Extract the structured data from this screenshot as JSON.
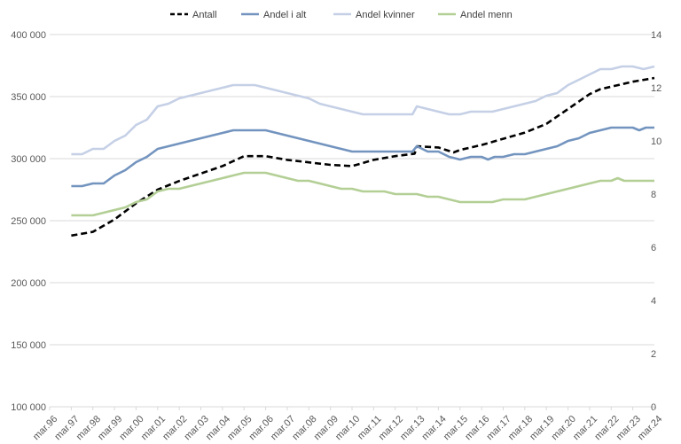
{
  "chart_data": {
    "type": "line",
    "title": "",
    "legend_position": "top",
    "grid": "horizontal",
    "x_tick_labels": [
      "mar.96",
      "mar.97",
      "mar.98",
      "mar.99",
      "mar.00",
      "mar.01",
      "mar.02",
      "mar.03",
      "mar.04",
      "mar.05",
      "mar.06",
      "mar.07",
      "mar.08",
      "mar.09",
      "mar.10",
      "mar.11",
      "mar.12",
      "mar.13",
      "mar.14",
      "mar.15",
      "mar.16",
      "mar.17",
      "mar.18",
      "mar.19",
      "mar.20",
      "mar.21",
      "mar.22",
      "mar.23",
      "mar.24"
    ],
    "y_left": {
      "min": 100000,
      "max": 400000,
      "step": 50000,
      "tick_labels": [
        "100 000",
        "150 000",
        "200 000",
        "250 000",
        "300 000",
        "350 000",
        "400 000"
      ]
    },
    "y_right": {
      "min": 0,
      "max": 14,
      "step": 2,
      "tick_labels": [
        "0",
        "2",
        "4",
        "6",
        "8",
        "10",
        "12",
        "14"
      ]
    },
    "series": [
      {
        "name": "Antall",
        "axis": "left",
        "color": "#000000",
        "dash": true,
        "points": [
          [
            1997,
            238000
          ],
          [
            1998,
            241000
          ],
          [
            1999,
            251000
          ],
          [
            2000,
            264000
          ],
          [
            2001,
            275000
          ],
          [
            2002,
            282000
          ],
          [
            2003,
            288000
          ],
          [
            2004,
            294000
          ],
          [
            2005,
            302000
          ],
          [
            2006,
            302000
          ],
          [
            2007,
            299000
          ],
          [
            2008,
            297000
          ],
          [
            2009,
            295000
          ],
          [
            2010,
            294000
          ],
          [
            2011,
            299000
          ],
          [
            2012,
            302000
          ],
          [
            2012.9,
            304000
          ],
          [
            2013,
            310000
          ],
          [
            2014,
            309000
          ],
          [
            2014.7,
            305000
          ],
          [
            2015,
            307000
          ],
          [
            2016,
            311000
          ],
          [
            2017,
            316000
          ],
          [
            2018,
            321000
          ],
          [
            2019,
            328000
          ],
          [
            2020,
            340000
          ],
          [
            2021,
            352000
          ],
          [
            2021.5,
            356000
          ],
          [
            2022,
            358000
          ],
          [
            2023,
            362000
          ],
          [
            2024,
            365000
          ]
        ]
      },
      {
        "name": "Andel i alt",
        "axis": "right",
        "color": "#7394BF",
        "dash": false,
        "points": [
          [
            1997,
            8.3
          ],
          [
            1997.5,
            8.3
          ],
          [
            1998,
            8.4
          ],
          [
            1998.5,
            8.4
          ],
          [
            1999,
            8.7
          ],
          [
            1999.5,
            8.9
          ],
          [
            2000,
            9.2
          ],
          [
            2000.5,
            9.4
          ],
          [
            2001,
            9.7
          ],
          [
            2001.5,
            9.8
          ],
          [
            2002,
            9.9
          ],
          [
            2002.5,
            10.0
          ],
          [
            2003,
            10.1
          ],
          [
            2003.5,
            10.2
          ],
          [
            2004,
            10.3
          ],
          [
            2004.5,
            10.4
          ],
          [
            2005,
            10.4
          ],
          [
            2005.5,
            10.4
          ],
          [
            2006,
            10.4
          ],
          [
            2006.5,
            10.3
          ],
          [
            2007,
            10.2
          ],
          [
            2007.5,
            10.1
          ],
          [
            2008,
            10.0
          ],
          [
            2008.5,
            9.9
          ],
          [
            2009,
            9.8
          ],
          [
            2009.5,
            9.7
          ],
          [
            2010,
            9.6
          ],
          [
            2010.5,
            9.6
          ],
          [
            2011,
            9.6
          ],
          [
            2011.5,
            9.6
          ],
          [
            2012,
            9.6
          ],
          [
            2012.8,
            9.6
          ],
          [
            2013,
            9.8
          ],
          [
            2013.5,
            9.6
          ],
          [
            2014,
            9.6
          ],
          [
            2014.5,
            9.4
          ],
          [
            2015,
            9.3
          ],
          [
            2015.5,
            9.4
          ],
          [
            2016,
            9.4
          ],
          [
            2016.3,
            9.3
          ],
          [
            2016.6,
            9.4
          ],
          [
            2017,
            9.4
          ],
          [
            2017.5,
            9.5
          ],
          [
            2018,
            9.5
          ],
          [
            2018.5,
            9.6
          ],
          [
            2019,
            9.7
          ],
          [
            2019.5,
            9.8
          ],
          [
            2020,
            10.0
          ],
          [
            2020.5,
            10.1
          ],
          [
            2021,
            10.3
          ],
          [
            2021.5,
            10.4
          ],
          [
            2022,
            10.5
          ],
          [
            2022.5,
            10.5
          ],
          [
            2023,
            10.5
          ],
          [
            2023.3,
            10.4
          ],
          [
            2023.6,
            10.5
          ],
          [
            2024,
            10.5
          ]
        ]
      },
      {
        "name": "Andel kvinner",
        "axis": "right",
        "color": "#C5D0E6",
        "dash": false,
        "points": [
          [
            1997,
            9.5
          ],
          [
            1997.5,
            9.5
          ],
          [
            1998,
            9.7
          ],
          [
            1998.5,
            9.7
          ],
          [
            1999,
            10.0
          ],
          [
            1999.5,
            10.2
          ],
          [
            2000,
            10.6
          ],
          [
            2000.5,
            10.8
          ],
          [
            2001,
            11.3
          ],
          [
            2001.5,
            11.4
          ],
          [
            2002,
            11.6
          ],
          [
            2002.5,
            11.7
          ],
          [
            2003,
            11.8
          ],
          [
            2003.5,
            11.9
          ],
          [
            2004,
            12.0
          ],
          [
            2004.5,
            12.1
          ],
          [
            2005,
            12.1
          ],
          [
            2005.5,
            12.1
          ],
          [
            2006,
            12.0
          ],
          [
            2006.5,
            11.9
          ],
          [
            2007,
            11.8
          ],
          [
            2007.5,
            11.7
          ],
          [
            2008,
            11.6
          ],
          [
            2008.5,
            11.4
          ],
          [
            2009,
            11.3
          ],
          [
            2009.5,
            11.2
          ],
          [
            2010,
            11.1
          ],
          [
            2010.5,
            11.0
          ],
          [
            2011,
            11.0
          ],
          [
            2012,
            11.0
          ],
          [
            2012.8,
            11.0
          ],
          [
            2013,
            11.3
          ],
          [
            2013.5,
            11.2
          ],
          [
            2014,
            11.1
          ],
          [
            2014.5,
            11.0
          ],
          [
            2015,
            11.0
          ],
          [
            2015.5,
            11.1
          ],
          [
            2016,
            11.1
          ],
          [
            2016.5,
            11.1
          ],
          [
            2017,
            11.2
          ],
          [
            2017.5,
            11.3
          ],
          [
            2018,
            11.4
          ],
          [
            2018.5,
            11.5
          ],
          [
            2019,
            11.7
          ],
          [
            2019.5,
            11.8
          ],
          [
            2020,
            12.1
          ],
          [
            2020.5,
            12.3
          ],
          [
            2021,
            12.5
          ],
          [
            2021.5,
            12.7
          ],
          [
            2022,
            12.7
          ],
          [
            2022.5,
            12.8
          ],
          [
            2023,
            12.8
          ],
          [
            2023.5,
            12.7
          ],
          [
            2024,
            12.8
          ]
        ]
      },
      {
        "name": "Andel menn",
        "axis": "right",
        "color": "#B3CF95",
        "dash": false,
        "points": [
          [
            1997,
            7.2
          ],
          [
            1997.5,
            7.2
          ],
          [
            1998,
            7.2
          ],
          [
            1998.5,
            7.3
          ],
          [
            1999,
            7.4
          ],
          [
            1999.5,
            7.5
          ],
          [
            2000,
            7.7
          ],
          [
            2000.5,
            7.8
          ],
          [
            2001,
            8.1
          ],
          [
            2001.5,
            8.2
          ],
          [
            2002,
            8.2
          ],
          [
            2002.5,
            8.3
          ],
          [
            2003,
            8.4
          ],
          [
            2003.5,
            8.5
          ],
          [
            2004,
            8.6
          ],
          [
            2004.5,
            8.7
          ],
          [
            2005,
            8.8
          ],
          [
            2005.5,
            8.8
          ],
          [
            2006,
            8.8
          ],
          [
            2006.5,
            8.7
          ],
          [
            2007,
            8.6
          ],
          [
            2007.5,
            8.5
          ],
          [
            2008,
            8.5
          ],
          [
            2008.5,
            8.4
          ],
          [
            2009,
            8.3
          ],
          [
            2009.5,
            8.2
          ],
          [
            2010,
            8.2
          ],
          [
            2010.5,
            8.1
          ],
          [
            2011,
            8.1
          ],
          [
            2011.5,
            8.1
          ],
          [
            2012,
            8.0
          ],
          [
            2012.8,
            8.0
          ],
          [
            2013,
            8.0
          ],
          [
            2013.5,
            7.9
          ],
          [
            2014,
            7.9
          ],
          [
            2014.5,
            7.8
          ],
          [
            2015,
            7.7
          ],
          [
            2015.5,
            7.7
          ],
          [
            2016,
            7.7
          ],
          [
            2016.5,
            7.7
          ],
          [
            2017,
            7.8
          ],
          [
            2017.5,
            7.8
          ],
          [
            2018,
            7.8
          ],
          [
            2018.5,
            7.9
          ],
          [
            2019,
            8.0
          ],
          [
            2019.5,
            8.1
          ],
          [
            2020,
            8.2
          ],
          [
            2020.5,
            8.3
          ],
          [
            2021,
            8.4
          ],
          [
            2021.5,
            8.5
          ],
          [
            2022,
            8.5
          ],
          [
            2022.3,
            8.6
          ],
          [
            2022.6,
            8.5
          ],
          [
            2023,
            8.5
          ],
          [
            2023.5,
            8.5
          ],
          [
            2024,
            8.5
          ]
        ]
      }
    ]
  }
}
